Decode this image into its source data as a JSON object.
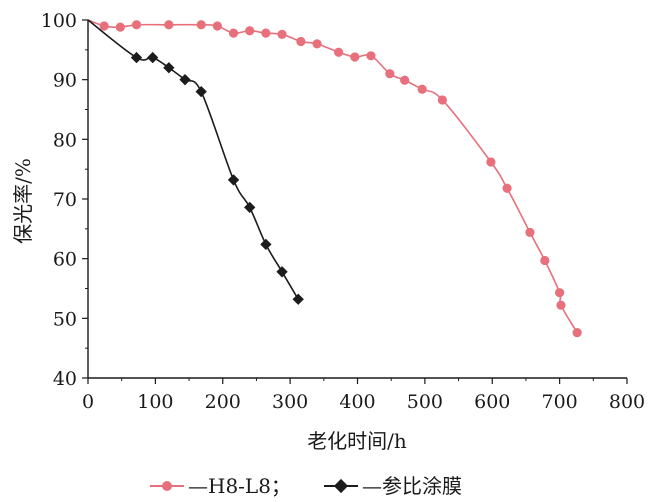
{
  "chart_data": {
    "type": "line",
    "xlabel": "老化时间/h",
    "ylabel": "保光率/%",
    "xlim": [
      0,
      800
    ],
    "ylim": [
      40,
      100
    ],
    "x_ticks": [
      0,
      100,
      200,
      300,
      400,
      500,
      600,
      700,
      800
    ],
    "y_ticks": [
      40,
      50,
      60,
      70,
      80,
      90,
      100
    ],
    "grid": false,
    "legend_position": "bottom",
    "series": [
      {
        "name": "—H8-L8；",
        "color": "#e8707c",
        "marker": "circle",
        "x": [
          0,
          24,
          48,
          72,
          120,
          168,
          192,
          216,
          240,
          264,
          288,
          316,
          340,
          372,
          396,
          420,
          448,
          470,
          496,
          526,
          598,
          622,
          656,
          678,
          700,
          702,
          726
        ],
        "y": [
          100,
          99,
          98.8,
          99.2,
          99.2,
          99.2,
          99,
          97.8,
          98.2,
          97.8,
          97.6,
          96.4,
          96,
          94.6,
          93.8,
          94,
          91,
          89.9,
          88.4,
          86.6,
          76.2,
          71.8,
          64.4,
          59.7,
          54.3,
          52.2,
          47.6
        ]
      },
      {
        "name": "—参比涂膜",
        "color": "#1c1c1c",
        "marker": "diamond",
        "x": [
          0,
          72,
          96,
          120,
          144,
          168,
          216,
          240,
          264,
          288,
          312
        ],
        "y": [
          100,
          93.7,
          93.7,
          92,
          90,
          88,
          73.2,
          68.6,
          62.4,
          57.8,
          53.2
        ]
      }
    ]
  }
}
